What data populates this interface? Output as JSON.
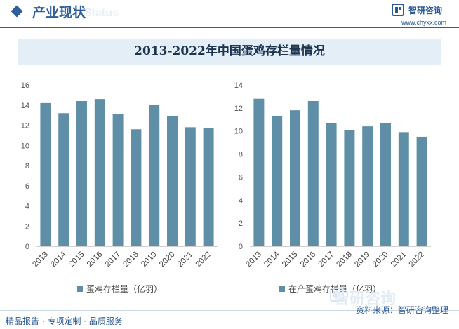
{
  "header": {
    "title": "产业现状",
    "ghost_text": "Status",
    "brand_name": "智研咨询",
    "brand_url": "www.chyxx.com"
  },
  "watermark_text": "智研咨询",
  "footer": {
    "left": "精品报告 · 专项定制 · 品质服务",
    "source": "资料来源：智研咨询整理"
  },
  "colors": {
    "bar": "#5e8fa6",
    "accent": "#2f5f9a",
    "title_band": "#e4eef6"
  },
  "chart_data": [
    {
      "type": "bar",
      "title": "2013-2022年中国蛋鸡存栏量情况",
      "categories": [
        "2013",
        "2014",
        "2015",
        "2016",
        "2017",
        "2018",
        "2019",
        "2020",
        "2021",
        "2022"
      ],
      "series": [
        {
          "name": "蛋鸡存栏量（亿羽）",
          "values": [
            14.2,
            13.2,
            14.4,
            14.6,
            13.1,
            11.6,
            14.0,
            12.9,
            11.8,
            11.7
          ]
        }
      ],
      "ylim": [
        0,
        16
      ],
      "yticks": [
        0,
        2,
        4,
        6,
        8,
        10,
        12,
        14,
        16
      ],
      "legend": "bottom",
      "grid": false
    },
    {
      "type": "bar",
      "categories": [
        "2013",
        "2014",
        "2015",
        "2016",
        "2017",
        "2018",
        "2019",
        "2020",
        "2021",
        "2022"
      ],
      "series": [
        {
          "name": "在产蛋鸡存栏量（亿羽）",
          "values": [
            12.8,
            11.3,
            11.8,
            12.6,
            10.7,
            10.1,
            10.4,
            10.7,
            9.9,
            9.5
          ]
        }
      ],
      "ylim": [
        0,
        14
      ],
      "yticks": [
        0,
        2,
        4,
        6,
        8,
        10,
        12,
        14
      ],
      "legend": "bottom",
      "grid": false
    }
  ]
}
